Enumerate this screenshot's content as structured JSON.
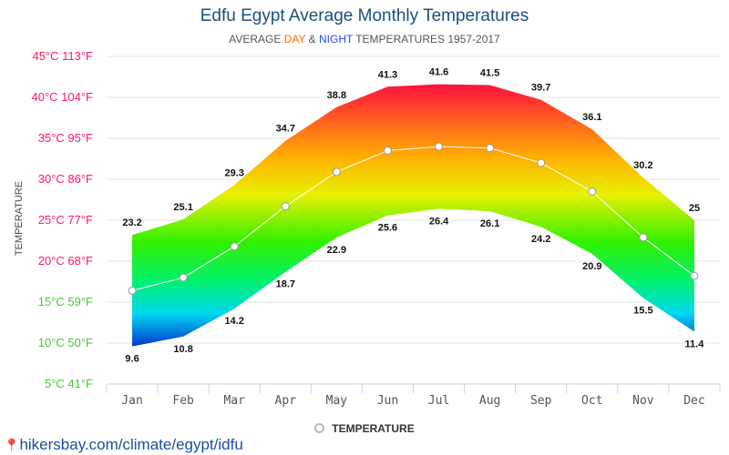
{
  "header": {
    "title": "Edfu Egypt Average Monthly Temperatures",
    "subtitle_pre": "AVERAGE ",
    "subtitle_day": "DAY",
    "subtitle_amp": " & ",
    "subtitle_night": "NIGHT",
    "subtitle_post": " TEMPERATURES 1957-2017"
  },
  "legend": {
    "label": "TEMPERATURE"
  },
  "source": {
    "text": "hikersbay.com/climate/egypt/idfu"
  },
  "colors": {
    "axis_warm": "#ff1a5a",
    "axis_cool": "#4cc43c",
    "line": "#ffffff"
  },
  "chart_data": {
    "type": "area",
    "title": "Edfu Egypt Average Monthly Temperatures",
    "ylabel": "TEMPERATURE",
    "categories": [
      "Jan",
      "Feb",
      "Mar",
      "Apr",
      "May",
      "Jun",
      "Jul",
      "Aug",
      "Sep",
      "Oct",
      "Nov",
      "Dec"
    ],
    "series": [
      {
        "name": "Day",
        "values": [
          23.2,
          25.1,
          29.3,
          34.7,
          38.8,
          41.3,
          41.6,
          41.5,
          39.7,
          36.1,
          30.2,
          25
        ]
      },
      {
        "name": "Night",
        "values": [
          9.6,
          10.8,
          14.2,
          18.7,
          22.9,
          25.6,
          26.4,
          26.1,
          24.2,
          20.9,
          15.5,
          11.4
        ]
      },
      {
        "name": "TEMPERATURE",
        "values": [
          16.4,
          18,
          21.8,
          26.7,
          30.9,
          33.5,
          34,
          33.8,
          32,
          28.5,
          22.9,
          18.2
        ]
      }
    ],
    "yticks": [
      "5°C 41°F",
      "10°C 50°F",
      "15°C 59°F",
      "20°C 68°F",
      "25°C 77°F",
      "30°C 86°F",
      "35°C 95°F",
      "40°C 104°F",
      "45°C 113°F"
    ],
    "ytick_values": [
      5,
      10,
      15,
      20,
      25,
      30,
      35,
      40,
      45
    ],
    "ylim": [
      5,
      45
    ],
    "grid": true,
    "legend_position": "bottom"
  }
}
